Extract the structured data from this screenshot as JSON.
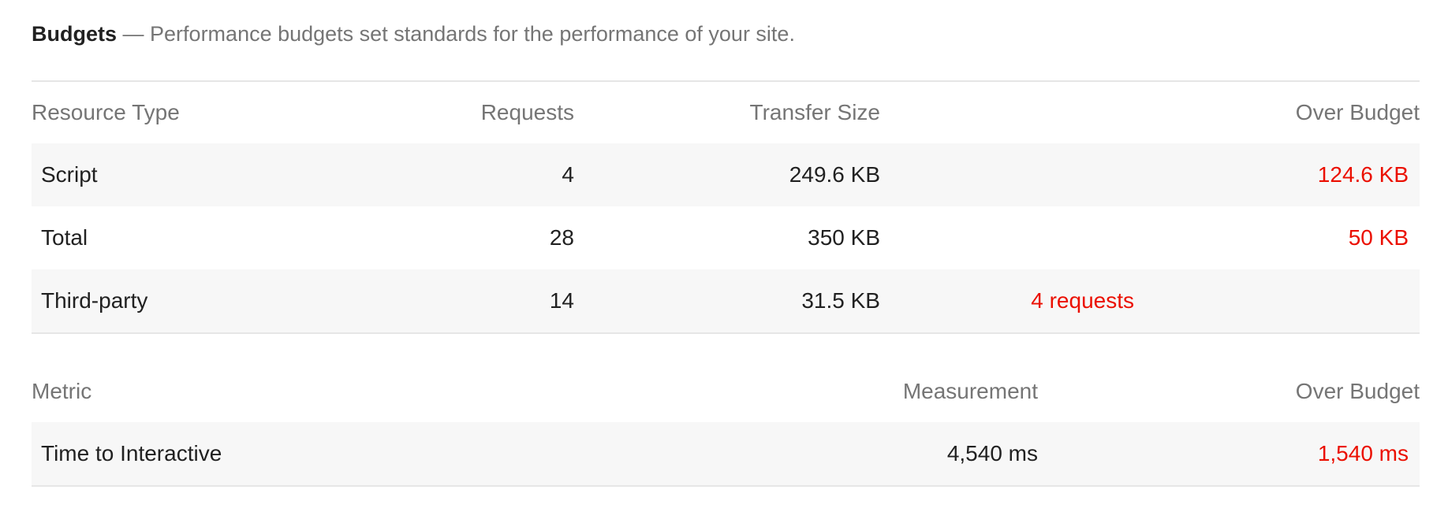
{
  "header": {
    "title": "Budgets",
    "separator": "—",
    "description": "Performance budgets set standards for the performance of your site."
  },
  "resource_table": {
    "columns": [
      "Resource Type",
      "Requests",
      "Transfer Size",
      "",
      "Over Budget"
    ],
    "rows": [
      {
        "type": "Script",
        "requests": "4",
        "transfer_size": "249.6 KB",
        "requests_over": "",
        "over_budget": "124.6 KB"
      },
      {
        "type": "Total",
        "requests": "28",
        "transfer_size": "350 KB",
        "requests_over": "",
        "over_budget": "50 KB"
      },
      {
        "type": "Third-party",
        "requests": "14",
        "transfer_size": "31.5 KB",
        "requests_over": "4 requests",
        "over_budget": ""
      }
    ]
  },
  "timing_table": {
    "columns": [
      "Metric",
      "Measurement",
      "Over Budget"
    ],
    "rows": [
      {
        "metric": "Time to Interactive",
        "measurement": "4,540 ms",
        "over_budget": "1,540 ms"
      }
    ]
  },
  "colors": {
    "fail": "#eb0f00",
    "text": "#212121",
    "muted": "#757575",
    "row_stripe": "#f7f7f7"
  }
}
